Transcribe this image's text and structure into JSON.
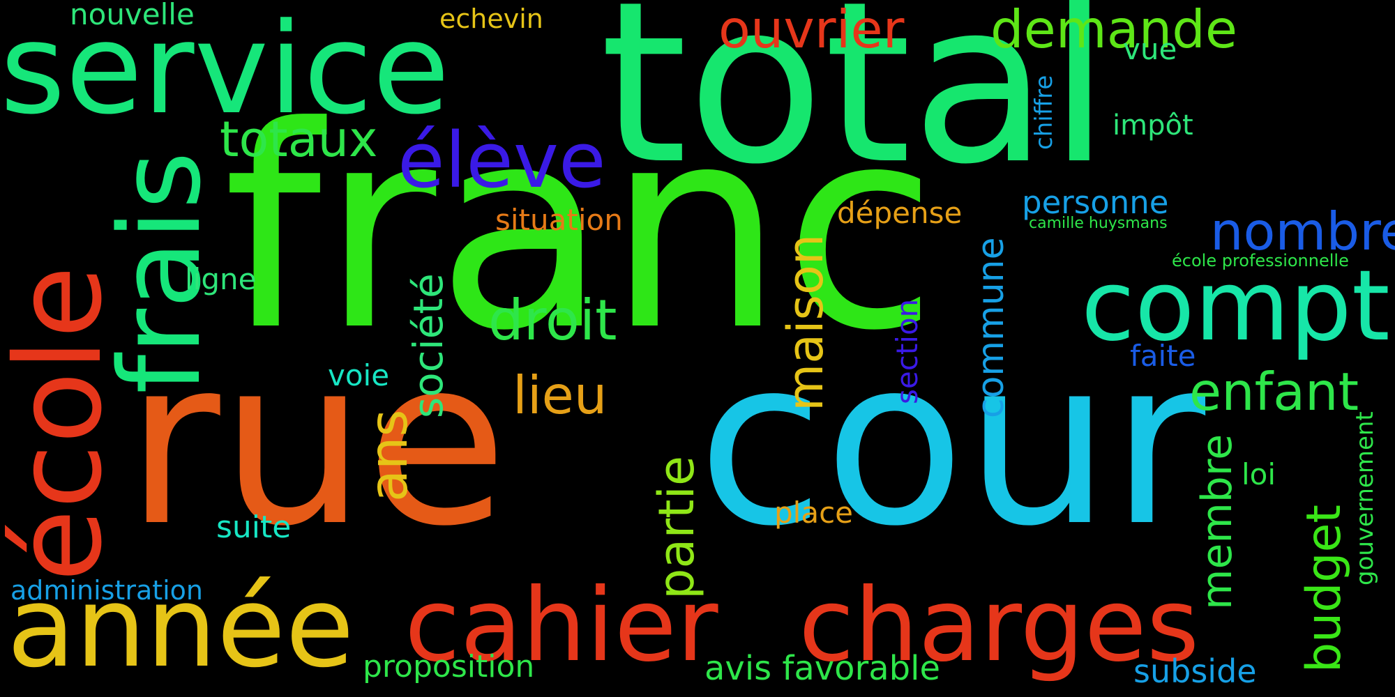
{
  "title": "",
  "words": [
    {
      "text": "franc",
      "color": "#2ee617",
      "rot": 0,
      "weight": 1.0
    },
    {
      "text": "total",
      "color": "#16e66e",
      "rot": 0,
      "weight": 0.93
    },
    {
      "text": "rue",
      "color": "#e55a17",
      "rot": 0,
      "weight": 0.82
    },
    {
      "text": "cour",
      "color": "#17c5e6",
      "rot": 0,
      "weight": 0.78
    },
    {
      "text": "service",
      "color": "#16e67a",
      "rot": 0,
      "weight": 0.6
    },
    {
      "text": "école",
      "color": "#e6361a",
      "rot": -90,
      "weight": 0.55
    },
    {
      "text": "frais",
      "color": "#16e67a",
      "rot": -90,
      "weight": 0.5
    },
    {
      "text": "année",
      "color": "#e6c417",
      "rot": 0,
      "weight": 0.52
    },
    {
      "text": "charges",
      "color": "#e6361a",
      "rot": 0,
      "weight": 0.46
    },
    {
      "text": "cahier",
      "color": "#e6361a",
      "rot": 0,
      "weight": 0.46
    },
    {
      "text": "compte",
      "color": "#17e6a8",
      "rot": 0,
      "weight": 0.45
    },
    {
      "text": "élève",
      "color": "#3a1ae6",
      "rot": 0,
      "weight": 0.38
    },
    {
      "text": "totaux",
      "color": "#2ee64a",
      "rot": 0,
      "weight": 0.3
    },
    {
      "text": "demande",
      "color": "#5ee617",
      "rot": 0,
      "weight": 0.3
    },
    {
      "text": "ouvrier",
      "color": "#e6361a",
      "rot": 0,
      "weight": 0.28
    },
    {
      "text": "nombre",
      "color": "#1a5ce6",
      "rot": 0,
      "weight": 0.28
    },
    {
      "text": "enfant",
      "color": "#2ee64a",
      "rot": 0,
      "weight": 0.28
    },
    {
      "text": "droit",
      "color": "#2ee64a",
      "rot": 0,
      "weight": 0.28
    },
    {
      "text": "lieu",
      "color": "#e6a017",
      "rot": 0,
      "weight": 0.26
    },
    {
      "text": "maison",
      "color": "#e6c417",
      "rot": -90,
      "weight": 0.28
    },
    {
      "text": "ans",
      "color": "#e6c417",
      "rot": -90,
      "weight": 0.28
    },
    {
      "text": "partie",
      "color": "#8fe617",
      "rot": -90,
      "weight": 0.28
    },
    {
      "text": "société",
      "color": "#2ee67a",
      "rot": -90,
      "weight": 0.22
    },
    {
      "text": "membre",
      "color": "#2ee64a",
      "rot": -90,
      "weight": 0.22
    },
    {
      "text": "budget",
      "color": "#3ae617",
      "rot": -90,
      "weight": 0.25
    },
    {
      "text": "commune",
      "color": "#17a0e6",
      "rot": -90,
      "weight": 0.2
    },
    {
      "text": "avis favorable",
      "color": "#2ee64a",
      "rot": 0,
      "weight": 0.18
    },
    {
      "text": "proposition",
      "color": "#2ee64a",
      "rot": 0,
      "weight": 0.17
    },
    {
      "text": "subside",
      "color": "#17a0e6",
      "rot": 0,
      "weight": 0.18
    },
    {
      "text": "administration",
      "color": "#17a0e6",
      "rot": 0,
      "weight": 0.15
    },
    {
      "text": "nouvelle",
      "color": "#2ee67a",
      "rot": 0,
      "weight": 0.15
    },
    {
      "text": "situation",
      "color": "#e67a17",
      "rot": 0,
      "weight": 0.15
    },
    {
      "text": "personne",
      "color": "#17a0e6",
      "rot": 0,
      "weight": 0.16
    },
    {
      "text": "dépense",
      "color": "#e6a017",
      "rot": 0,
      "weight": 0.15
    },
    {
      "text": "echevin",
      "color": "#e6c417",
      "rot": 0,
      "weight": 0.14
    },
    {
      "text": "place",
      "color": "#e6a017",
      "rot": 0,
      "weight": 0.15
    },
    {
      "text": "suite",
      "color": "#17e6c4",
      "rot": 0,
      "weight": 0.15
    },
    {
      "text": "ligne",
      "color": "#2ee67a",
      "rot": 0,
      "weight": 0.15
    },
    {
      "text": "voie",
      "color": "#17e6c4",
      "rot": 0,
      "weight": 0.14
    },
    {
      "text": "vue",
      "color": "#2ee67a",
      "rot": 0,
      "weight": 0.14
    },
    {
      "text": "impôt",
      "color": "#2ee67a",
      "rot": 0,
      "weight": 0.14
    },
    {
      "text": "faite",
      "color": "#1a5ce6",
      "rot": 0,
      "weight": 0.14
    },
    {
      "text": "loi",
      "color": "#2ee64a",
      "rot": 0,
      "weight": 0.14
    },
    {
      "text": "section",
      "color": "#3a1ae6",
      "rot": -90,
      "weight": 0.14
    },
    {
      "text": "chiffre",
      "color": "#17a0e6",
      "rot": -90,
      "weight": 0.12
    },
    {
      "text": "gouvernement",
      "color": "#2ee64a",
      "rot": -90,
      "weight": 0.12
    },
    {
      "text": "école professionnelle",
      "color": "#2ee64a",
      "rot": 0,
      "weight": 0.08
    },
    {
      "text": "camille huysmans",
      "color": "#2ee64a",
      "rot": 0,
      "weight": 0.08
    }
  ]
}
